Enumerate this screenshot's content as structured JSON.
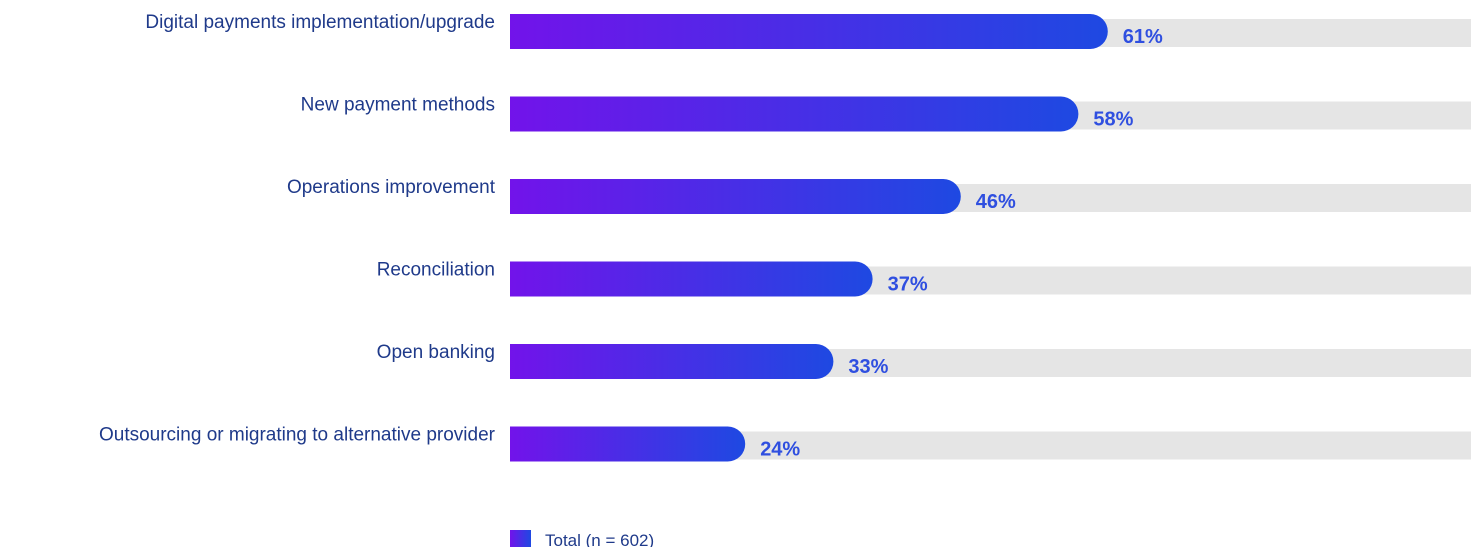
{
  "chart_data": {
    "type": "bar",
    "orientation": "horizontal",
    "categories": [
      "Digital payments implementation/upgrade",
      "New payment methods",
      "Operations improvement",
      "Reconciliation",
      "Open banking",
      "Outsourcing or migrating to alternative provider"
    ],
    "series": [
      {
        "name": "Total (n = 602)",
        "values": [
          61,
          58,
          46,
          37,
          33,
          24
        ]
      }
    ],
    "value_labels": [
      "61%",
      "58%",
      "46%",
      "37%",
      "33%",
      "24%"
    ],
    "unit": "%",
    "xlim": [
      0,
      100
    ],
    "grid": false,
    "legend_position": "bottom",
    "colors": {
      "bar_gradient_start": "#7213ea",
      "bar_gradient_end": "#1e49e2",
      "track": "#e5e5e5",
      "value_label": "#2f4fe0",
      "category_label": "#1f3a8a"
    }
  }
}
